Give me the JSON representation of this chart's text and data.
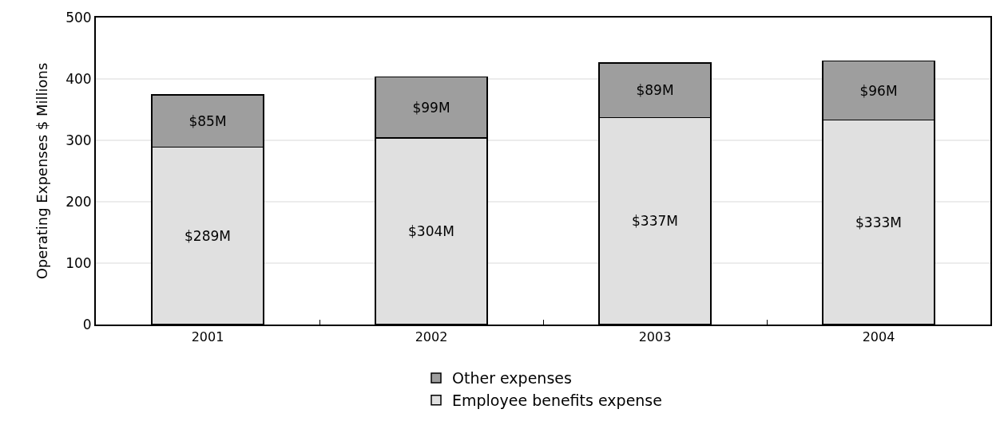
{
  "chart_data": {
    "type": "bar",
    "categories": [
      "2001",
      "2002",
      "2003",
      "2004"
    ],
    "ylabel": "Operating Expenses $ Millions",
    "stacked": true,
    "ylim": [
      0,
      500
    ],
    "yticks": [
      0,
      100,
      200,
      300,
      400,
      500
    ],
    "grid": "y",
    "legend": "bottom",
    "series": [
      {
        "name": "Employee benefits expense",
        "color": "#e0e0e0",
        "values": [
          289,
          304,
          337,
          333
        ],
        "value_labels": [
          "$289M",
          "$304M",
          "$337M",
          "$333M"
        ]
      },
      {
        "name": "Other expenses",
        "color": "#9e9e9e",
        "values": [
          85,
          99,
          89,
          96
        ],
        "value_labels": [
          "$85M",
          "$99M",
          "$89M",
          "$96M"
        ]
      }
    ]
  }
}
